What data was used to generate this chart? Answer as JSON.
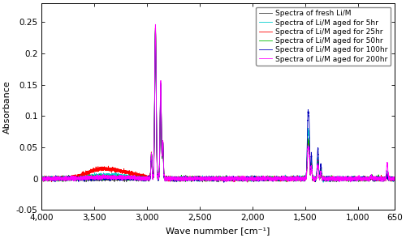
{
  "xlabel": "Wave nummber [cm⁻¹]",
  "ylabel": "Absorbance",
  "xlim": [
    4000,
    650
  ],
  "ylim": [
    -0.05,
    0.28
  ],
  "yticks": [
    -0.05,
    0,
    0.05,
    0.1,
    0.15,
    0.2,
    0.25
  ],
  "xticks": [
    4000,
    3500,
    3000,
    2500,
    2000,
    1500,
    1000,
    650
  ],
  "xtick_labels": [
    "4,000",
    "3,500",
    "3,000",
    "2,500",
    "2,000",
    "1,500",
    "1,000",
    "650"
  ],
  "legend_entries": [
    "Spectra of fresh Li/M",
    "Spectra of Li/M aged for 5hr",
    "Spectra of Li/M aged for 25hr",
    "Spectra of Li/M aged for 50hr",
    "Spectra of Li/M aged for 100hr",
    "Spectra of Li/M aged for 200hr"
  ],
  "line_colors": [
    "#444444",
    "#00CCCC",
    "#FF0000",
    "#00BB00",
    "#0000BB",
    "#FF00FF"
  ],
  "background_color": "#FFFFFF",
  "fig_width": 5.0,
  "fig_height": 2.94,
  "dpi": 100
}
